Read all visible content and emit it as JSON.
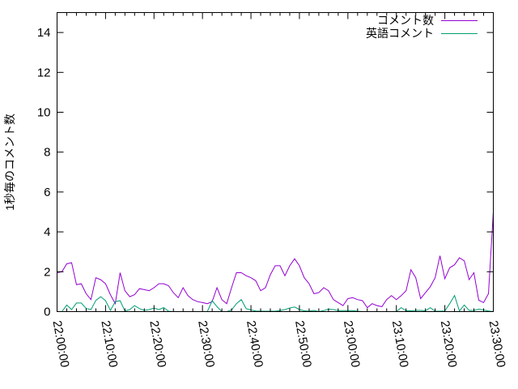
{
  "chart_data": {
    "type": "line",
    "title": "",
    "xlabel": "",
    "ylabel": "1秒毎のコメント数",
    "xlim": [
      "22:00:00",
      "23:30:00"
    ],
    "ylim": [
      0,
      15
    ],
    "x_ticks": [
      "22:00:00",
      "22:10:00",
      "22:20:00",
      "22:30:00",
      "22:40:00",
      "22:50:00",
      "23:00:00",
      "23:10:00",
      "23:20:00",
      "23:30:00"
    ],
    "y_ticks": [
      "0",
      "2",
      "4",
      "6",
      "8",
      "10",
      "12",
      "14"
    ],
    "grid": false,
    "legend_position": "top-right",
    "x_start": "22:00:00",
    "x_step": "00:01:00",
    "series": [
      {
        "name": "コメント数",
        "color": "#9400d3",
        "values": [
          1.95,
          2.0,
          2.4,
          2.45,
          1.35,
          1.4,
          0.9,
          0.6,
          1.7,
          1.6,
          1.4,
          0.85,
          0.4,
          1.95,
          1.05,
          0.75,
          0.85,
          1.15,
          1.1,
          1.05,
          1.2,
          1.4,
          1.4,
          1.3,
          0.95,
          0.7,
          1.2,
          0.8,
          0.6,
          0.5,
          0.45,
          0.4,
          0.5,
          1.2,
          0.6,
          0.4,
          1.2,
          1.95,
          1.95,
          1.8,
          1.7,
          1.55,
          1.05,
          1.2,
          1.85,
          2.3,
          2.3,
          1.8,
          2.3,
          2.65,
          2.3,
          1.7,
          1.4,
          0.9,
          0.95,
          1.2,
          1.05,
          0.6,
          0.45,
          0.3,
          0.65,
          0.7,
          0.6,
          0.55,
          0.2,
          0.4,
          0.3,
          0.25,
          0.6,
          0.8,
          0.6,
          0.8,
          1.05,
          2.1,
          1.7,
          0.65,
          0.95,
          1.25,
          1.7,
          2.8,
          1.65,
          2.2,
          2.35,
          2.7,
          2.55,
          1.6,
          1.95,
          0.57,
          0.45,
          0.9,
          5.0
        ]
      },
      {
        "name": "英語コメント",
        "color": "#009e73",
        "values": [
          0,
          0,
          0.33,
          0.1,
          0.43,
          0.43,
          0.16,
          0.1,
          0.56,
          0.75,
          0.55,
          0.06,
          0.5,
          0.55,
          0.03,
          0.1,
          0.3,
          0.15,
          0.06,
          0.1,
          0.18,
          0.1,
          0.2,
          0.02,
          0,
          0,
          0,
          0,
          0,
          0,
          0,
          0,
          0.55,
          0.25,
          0,
          0,
          0.08,
          0.4,
          0.6,
          0.15,
          0.08,
          0.03,
          0.02,
          0.02,
          0.02,
          0.02,
          0.05,
          0.1,
          0.18,
          0.23,
          0.1,
          0.04,
          0.02,
          0.06,
          0,
          0.05,
          0.12,
          0.1,
          0.05,
          0.05,
          0.05,
          0.05,
          0.02,
          0,
          0,
          0,
          0,
          0,
          0,
          0,
          0,
          0.2,
          0.04,
          0.04,
          0.06,
          0.06,
          0.04,
          0.2,
          0.02,
          0.02,
          0.03,
          0.4,
          0.81,
          0.03,
          0.33,
          0.06,
          0.06,
          0.12,
          0.08,
          0.03,
          0
        ]
      }
    ]
  }
}
